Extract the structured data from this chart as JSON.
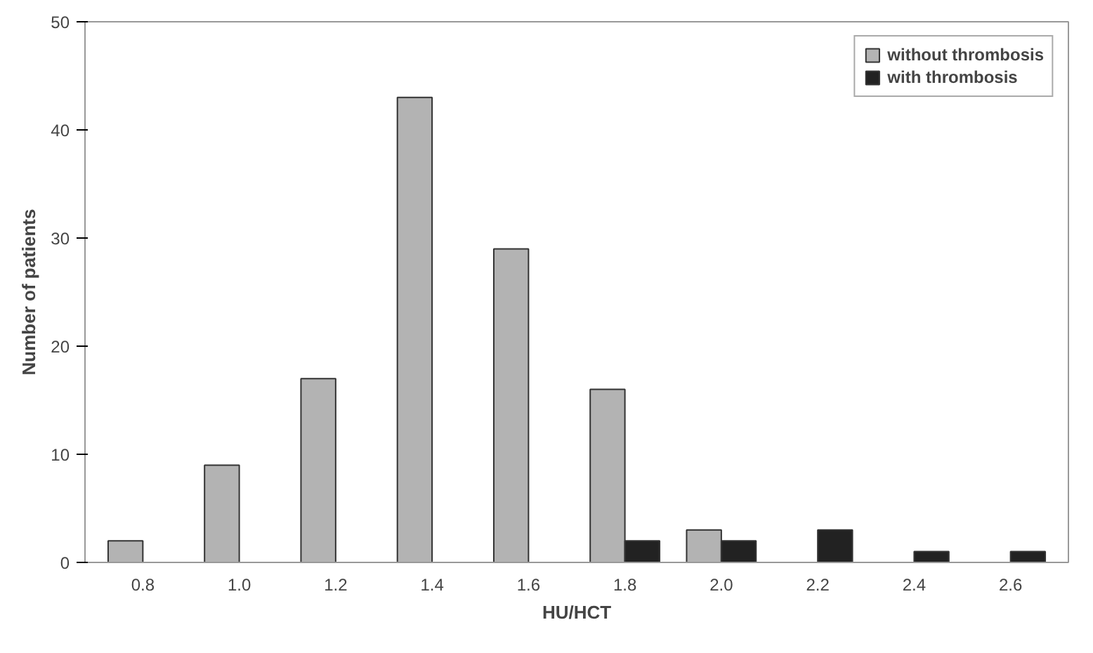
{
  "chart_data": {
    "type": "bar",
    "xlabel": "HU/HCT",
    "ylabel": "Number of patients",
    "categories": [
      "0.8",
      "1.0",
      "1.2",
      "1.4",
      "1.6",
      "1.8",
      "2.0",
      "2.2",
      "2.4",
      "2.6"
    ],
    "series": [
      {
        "name": "without thrombosis",
        "color": "#b3b3b3",
        "values": [
          2,
          9,
          17,
          43,
          29,
          16,
          3,
          null,
          null,
          null
        ]
      },
      {
        "name": "with thrombosis",
        "color": "#222222",
        "values": [
          null,
          null,
          null,
          null,
          null,
          2,
          2,
          3,
          1,
          1
        ]
      }
    ],
    "ylim": [
      0,
      50
    ],
    "yticks": [
      0,
      10,
      20,
      30,
      40,
      50
    ],
    "grid": false,
    "legend": "top right"
  }
}
